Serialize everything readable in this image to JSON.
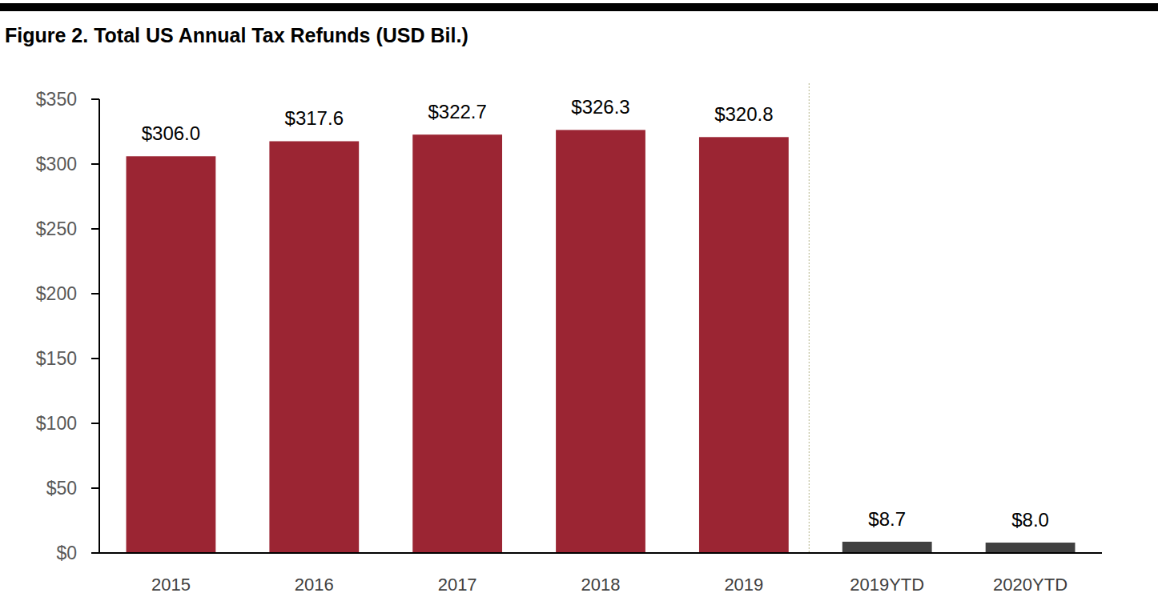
{
  "chart_data": {
    "type": "bar",
    "title": "Figure 2. Total US Annual Tax Refunds (USD Bil.)",
    "categories": [
      "2015",
      "2016",
      "2017",
      "2018",
      "2019",
      "2019YTD",
      "2020YTD"
    ],
    "values": [
      306.0,
      317.6,
      322.7,
      326.3,
      320.8,
      8.7,
      8.0
    ],
    "value_labels": [
      "$306.0",
      "$317.6",
      "$322.7",
      "$326.3",
      "$320.8",
      "$8.7",
      "$8.0"
    ],
    "colors": [
      "#9b2533",
      "#9b2533",
      "#9b2533",
      "#9b2533",
      "#9b2533",
      "#404040",
      "#404040"
    ],
    "ylim": [
      0,
      350
    ],
    "yticks": [
      {
        "value": 0,
        "label": "$0"
      },
      {
        "value": 50,
        "label": "$50"
      },
      {
        "value": 100,
        "label": "$100"
      },
      {
        "value": 150,
        "label": "$150"
      },
      {
        "value": 200,
        "label": "$200"
      },
      {
        "value": 250,
        "label": "$250"
      },
      {
        "value": 300,
        "label": "$300"
      },
      {
        "value": 350,
        "label": "$350"
      }
    ],
    "grid": false,
    "data_labels": true
  }
}
